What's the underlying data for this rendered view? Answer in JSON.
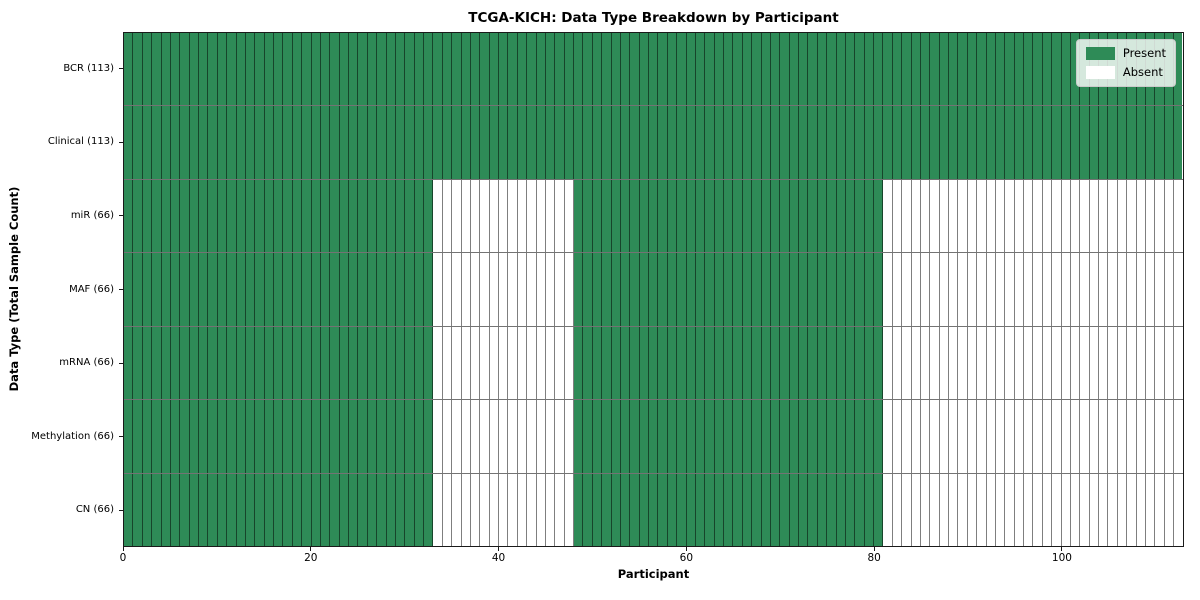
{
  "title": "TCGA-KICH: Data Type Breakdown by Participant",
  "xlabel": "Participant",
  "ylabel": "Data Type (Total Sample Count)",
  "legend": {
    "present_label": "Present",
    "absent_label": "Absent"
  },
  "colors": {
    "present": "#2e8b57",
    "absent": "#ffffff"
  },
  "chart_data": {
    "type": "heatmap",
    "title": "TCGA-KICH: Data Type Breakdown by Participant",
    "xlabel": "Participant",
    "ylabel": "Data Type (Total Sample Count)",
    "n_participants": 113,
    "x_ticks": [
      0,
      20,
      40,
      60,
      80,
      100
    ],
    "xlim": [
      0,
      113
    ],
    "legend_position": "upper right",
    "cell_states": {
      "present": 1,
      "absent": 0
    },
    "rows": [
      {
        "label": "BCR (113)",
        "total": 113,
        "present_ranges": [
          [
            0,
            113
          ]
        ]
      },
      {
        "label": "Clinical (113)",
        "total": 113,
        "present_ranges": [
          [
            0,
            113
          ]
        ]
      },
      {
        "label": "miR (66)",
        "total": 66,
        "present_ranges": [
          [
            0,
            33
          ],
          [
            48,
            81
          ]
        ]
      },
      {
        "label": "MAF (66)",
        "total": 66,
        "present_ranges": [
          [
            0,
            33
          ],
          [
            48,
            81
          ]
        ]
      },
      {
        "label": "mRNA (66)",
        "total": 66,
        "present_ranges": [
          [
            0,
            33
          ],
          [
            48,
            81
          ]
        ]
      },
      {
        "label": "Methylation (66)",
        "total": 66,
        "present_ranges": [
          [
            0,
            33
          ],
          [
            48,
            81
          ]
        ]
      },
      {
        "label": "CN (66)",
        "total": 66,
        "present_ranges": [
          [
            0,
            33
          ],
          [
            48,
            81
          ]
        ]
      }
    ]
  }
}
